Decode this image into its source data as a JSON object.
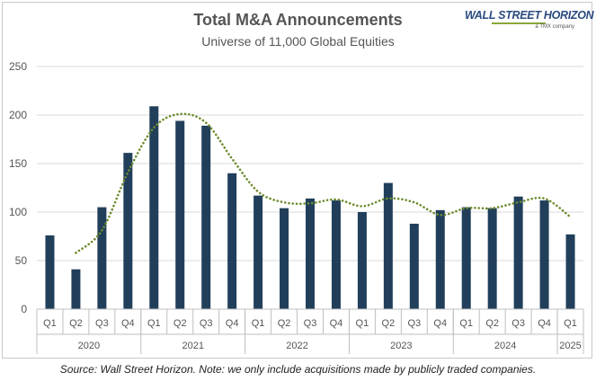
{
  "header": {
    "title": "Total M&A Announcements",
    "subtitle": "Universe of 11,000 Global Equities"
  },
  "logo": {
    "name": "WALL STREET HORIZON",
    "tagline": "a TMX company"
  },
  "footer": {
    "source": "Source: Wall Street Horizon. Note: we only include acquisitions made by publicly traded companies."
  },
  "colors": {
    "bar": "#213f5a",
    "trendline": "#6d8c2e",
    "grid": "#d9d9d9",
    "text": "#555555"
  },
  "chart_data": {
    "type": "bar",
    "title": "Total M&A Announcements",
    "subtitle": "Universe of 11,000 Global Equities",
    "ylim": [
      0,
      250
    ],
    "yticks": [
      0,
      50,
      100,
      150,
      200,
      250
    ],
    "grid": true,
    "categories": [
      "Q1",
      "Q2",
      "Q3",
      "Q4",
      "Q1",
      "Q2",
      "Q3",
      "Q4",
      "Q1",
      "Q2",
      "Q3",
      "Q4",
      "Q1",
      "Q2",
      "Q3",
      "Q4",
      "Q1",
      "Q2",
      "Q3",
      "Q4",
      "Q1"
    ],
    "year_groups": [
      {
        "label": "2020",
        "count": 4
      },
      {
        "label": "2021",
        "count": 4
      },
      {
        "label": "2022",
        "count": 4
      },
      {
        "label": "2023",
        "count": 4
      },
      {
        "label": "2024",
        "count": 4
      },
      {
        "label": "2025",
        "count": 1
      }
    ],
    "series": [
      {
        "type": "bar",
        "values": [
          76,
          41,
          105,
          161,
          209,
          194,
          189,
          140,
          117,
          104,
          114,
          112,
          100,
          130,
          88,
          102,
          105,
          104,
          116,
          112,
          77
        ]
      },
      {
        "type": "trendline",
        "values": [
          null,
          58,
          81,
          141,
          187,
          201,
          192,
          155,
          121,
          110,
          109,
          113,
          106,
          114,
          110,
          97,
          104,
          104,
          110,
          114,
          95
        ]
      }
    ]
  }
}
